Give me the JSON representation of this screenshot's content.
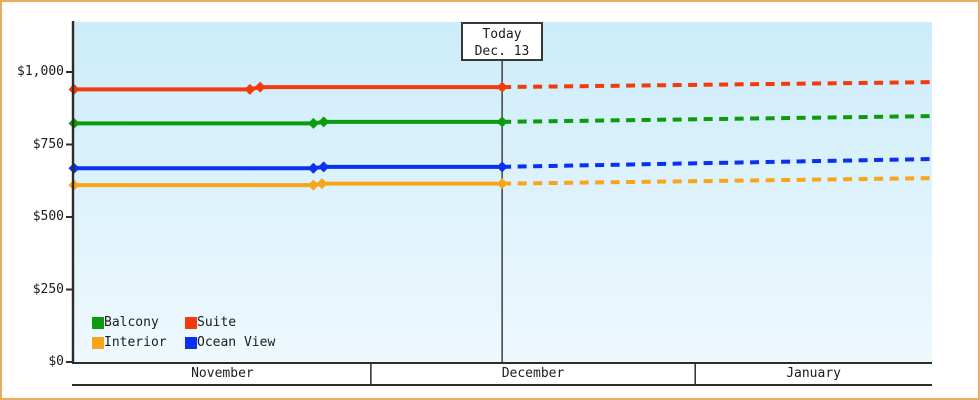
{
  "chart_data": {
    "type": "line",
    "title": "",
    "y_axis": {
      "min": 0,
      "max": 1000,
      "ticks": [
        {
          "label": "$0",
          "value": 0
        },
        {
          "label": "$250",
          "value": 250
        },
        {
          "label": "$500",
          "value": 500
        },
        {
          "label": "$750",
          "value": 750
        },
        {
          "label": "$1,000",
          "value": 1000
        }
      ]
    },
    "x_axis": {
      "months": [
        {
          "label": "November",
          "start_t": 0.0,
          "end_t": 0.346
        },
        {
          "label": "December",
          "start_t": 0.346,
          "end_t": 0.724
        },
        {
          "label": "January",
          "start_t": 0.724,
          "end_t": 1.0
        }
      ]
    },
    "today": {
      "line1": "Today",
      "line2": "Dec. 13",
      "t": 0.499
    },
    "series": [
      {
        "name": "Suite",
        "color": "#f23a0d",
        "solid": [
          {
            "t": 0.0,
            "date": "Nov 1",
            "value": 940
          },
          {
            "t": 0.205,
            "date": "Nov 18",
            "value": 940
          },
          {
            "t": 0.217,
            "date": "Nov 19",
            "value": 948
          },
          {
            "t": 0.499,
            "date": "Dec 13",
            "value": 948
          }
        ],
        "dashed": [
          {
            "t": 0.499,
            "date": "Dec 13",
            "value": 948
          },
          {
            "t": 1.0,
            "date": "Jan 23",
            "value": 965
          }
        ],
        "markers": [
          [
            0.0,
            940
          ],
          [
            0.205,
            940
          ],
          [
            0.217,
            948
          ],
          [
            0.499,
            948
          ]
        ]
      },
      {
        "name": "Balcony",
        "color": "#0d9b0d",
        "solid": [
          {
            "t": 0.0,
            "date": "Nov 1",
            "value": 823
          },
          {
            "t": 0.279,
            "date": "Nov 25",
            "value": 823
          },
          {
            "t": 0.291,
            "date": "Nov 26",
            "value": 828
          },
          {
            "t": 0.499,
            "date": "Dec 13",
            "value": 828
          }
        ],
        "dashed": [
          {
            "t": 0.499,
            "date": "Dec 13",
            "value": 828
          },
          {
            "t": 1.0,
            "date": "Jan 23",
            "value": 848
          }
        ],
        "markers": [
          [
            0.0,
            823
          ],
          [
            0.279,
            823
          ],
          [
            0.291,
            828
          ],
          [
            0.499,
            828
          ]
        ]
      },
      {
        "name": "Ocean View",
        "color": "#0a31ef",
        "solid": [
          {
            "t": 0.0,
            "date": "Nov 1",
            "value": 668
          },
          {
            "t": 0.279,
            "date": "Nov 25",
            "value": 668
          },
          {
            "t": 0.291,
            "date": "Nov 26",
            "value": 673
          },
          {
            "t": 0.499,
            "date": "Dec 13",
            "value": 673
          }
        ],
        "dashed": [
          {
            "t": 0.499,
            "date": "Dec 13",
            "value": 673
          },
          {
            "t": 1.0,
            "date": "Jan 23",
            "value": 700
          }
        ],
        "markers": [
          [
            0.0,
            668
          ],
          [
            0.279,
            668
          ],
          [
            0.291,
            673
          ],
          [
            0.499,
            673
          ]
        ]
      },
      {
        "name": "Interior",
        "color": "#f8a51b",
        "solid": [
          {
            "t": 0.0,
            "date": "Nov 1",
            "value": 610
          },
          {
            "t": 0.279,
            "date": "Nov 25",
            "value": 610
          },
          {
            "t": 0.289,
            "date": "Nov 26",
            "value": 615
          },
          {
            "t": 0.499,
            "date": "Dec 13",
            "value": 615
          }
        ],
        "dashed": [
          {
            "t": 0.499,
            "date": "Dec 13",
            "value": 615
          },
          {
            "t": 1.0,
            "date": "Jan 23",
            "value": 634
          }
        ],
        "markers": [
          [
            0.0,
            610
          ],
          [
            0.279,
            610
          ],
          [
            0.289,
            615
          ],
          [
            0.499,
            615
          ]
        ]
      }
    ],
    "legend": {
      "rows": [
        [
          {
            "label": "Balcony",
            "color": "#0d9b0d"
          },
          {
            "label": "Suite",
            "color": "#f23a0d"
          }
        ],
        [
          {
            "label": "Interior",
            "color": "#f8a51b"
          },
          {
            "label": "Ocean View",
            "color": "#0a31ef"
          }
        ]
      ]
    },
    "style_colors": {
      "frame_border": "#edaa60",
      "axis": "#2d2d2d",
      "today_line": "#3f3f3f",
      "plot_bg_top": "#ccecfa",
      "plot_bg_bottom": "#eef9fd"
    }
  }
}
